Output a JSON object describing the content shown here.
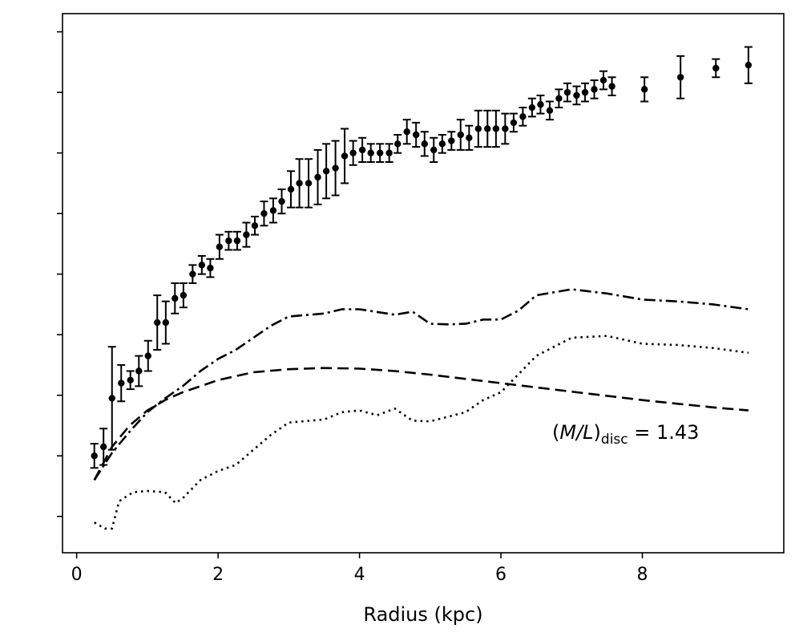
{
  "chart_data": {
    "type": "scatter",
    "xlabel": "Radius (kpc)",
    "ylabel": "",
    "title": "",
    "xlim": [
      -0.2,
      10.0
    ],
    "ylim": [
      -0.6,
      8.3
    ],
    "xticks": [
      0,
      2,
      4,
      6,
      8
    ],
    "yticks": [
      0,
      1,
      2,
      3,
      4,
      5,
      6,
      7,
      8
    ],
    "ytick_labels_shown": false,
    "grid": false,
    "legend": "none",
    "annotation": {
      "prefix": "(",
      "text_italic": "M/L",
      "close": ")",
      "subscript": "disc",
      "value": " = 1.43"
    },
    "observed": {
      "marker": "point-with-errorbars",
      "color": "#000000",
      "x": [
        0.25,
        0.38,
        0.5,
        0.63,
        0.76,
        0.88,
        1.01,
        1.14,
        1.26,
        1.39,
        1.51,
        1.64,
        1.77,
        1.89,
        2.02,
        2.15,
        2.27,
        2.4,
        2.52,
        2.65,
        2.78,
        2.9,
        3.03,
        3.15,
        3.28,
        3.41,
        3.53,
        3.66,
        3.79,
        3.91,
        4.04,
        4.16,
        4.29,
        4.42,
        4.54,
        4.67,
        4.8,
        4.92,
        5.05,
        5.17,
        5.3,
        5.43,
        5.55,
        5.68,
        5.81,
        5.93,
        6.06,
        6.18,
        6.31,
        6.44,
        6.56,
        6.69,
        6.82,
        6.94,
        7.07,
        7.19,
        7.32,
        7.45,
        7.57,
        8.03,
        8.54,
        9.04,
        9.5
      ],
      "y": [
        1.0,
        1.15,
        1.95,
        2.2,
        2.25,
        2.4,
        2.65,
        3.2,
        3.2,
        3.6,
        3.65,
        4.0,
        4.15,
        4.1,
        4.45,
        4.55,
        4.55,
        4.65,
        4.8,
        5.0,
        5.05,
        5.2,
        5.4,
        5.5,
        5.5,
        5.6,
        5.7,
        5.75,
        5.95,
        6.0,
        6.05,
        6.0,
        6.0,
        6.0,
        6.15,
        6.35,
        6.3,
        6.15,
        6.05,
        6.15,
        6.2,
        6.3,
        6.25,
        6.4,
        6.4,
        6.4,
        6.4,
        6.5,
        6.6,
        6.75,
        6.8,
        6.7,
        6.9,
        7.0,
        6.95,
        7.0,
        7.05,
        7.2,
        7.1,
        7.05,
        7.25,
        7.4,
        7.45
      ],
      "yerr": [
        0.2,
        0.3,
        0.85,
        0.3,
        0.15,
        0.25,
        0.25,
        0.45,
        0.35,
        0.25,
        0.2,
        0.15,
        0.15,
        0.15,
        0.2,
        0.15,
        0.15,
        0.2,
        0.15,
        0.2,
        0.2,
        0.2,
        0.3,
        0.4,
        0.4,
        0.45,
        0.45,
        0.45,
        0.45,
        0.2,
        0.2,
        0.15,
        0.15,
        0.15,
        0.15,
        0.2,
        0.2,
        0.2,
        0.2,
        0.15,
        0.15,
        0.25,
        0.2,
        0.3,
        0.3,
        0.3,
        0.25,
        0.15,
        0.15,
        0.15,
        0.15,
        0.15,
        0.15,
        0.15,
        0.15,
        0.15,
        0.15,
        0.15,
        0.15,
        0.2,
        0.35,
        0.15,
        0.3
      ]
    },
    "series": [
      {
        "style": "dashed",
        "color": "#000000",
        "x": [
          0.25,
          0.5,
          0.75,
          1.0,
          1.25,
          1.5,
          1.75,
          2.0,
          2.5,
          3.0,
          3.5,
          4.0,
          4.5,
          5.0,
          5.5,
          6.0,
          6.5,
          7.0,
          7.5,
          8.0,
          8.5,
          9.0,
          9.5
        ],
        "y": [
          0.6,
          1.15,
          1.5,
          1.75,
          1.92,
          2.05,
          2.15,
          2.25,
          2.38,
          2.43,
          2.45,
          2.44,
          2.4,
          2.34,
          2.27,
          2.2,
          2.13,
          2.06,
          1.99,
          1.92,
          1.86,
          1.8,
          1.75
        ]
      },
      {
        "style": "dash-dot",
        "color": "#000000",
        "x": [
          0.25,
          0.5,
          0.75,
          1.0,
          1.25,
          1.5,
          1.75,
          2.0,
          2.25,
          2.5,
          2.75,
          3.0,
          3.5,
          3.75,
          4.0,
          4.5,
          4.75,
          5.0,
          5.25,
          5.5,
          5.75,
          6.0,
          6.25,
          6.5,
          7.0,
          7.5,
          8.0,
          8.5,
          9.0,
          9.5
        ],
        "y": [
          0.6,
          1.05,
          1.4,
          1.72,
          1.95,
          2.15,
          2.4,
          2.6,
          2.75,
          2.95,
          3.15,
          3.3,
          3.35,
          3.42,
          3.42,
          3.33,
          3.38,
          3.18,
          3.17,
          3.18,
          3.25,
          3.25,
          3.4,
          3.65,
          3.75,
          3.68,
          3.58,
          3.55,
          3.5,
          3.42
        ]
      },
      {
        "style": "dotted",
        "color": "#000000",
        "x": [
          0.25,
          0.4,
          0.5,
          0.6,
          0.8,
          1.0,
          1.25,
          1.4,
          1.5,
          1.75,
          2.0,
          2.25,
          2.5,
          2.75,
          3.0,
          3.5,
          3.75,
          4.0,
          4.25,
          4.5,
          4.75,
          5.0,
          5.5,
          5.75,
          6.0,
          6.25,
          6.5,
          7.0,
          7.5,
          8.0,
          8.5,
          9.0,
          9.5
        ],
        "y": [
          -0.1,
          -0.2,
          -0.2,
          0.25,
          0.4,
          0.42,
          0.4,
          0.22,
          0.3,
          0.6,
          0.75,
          0.85,
          1.1,
          1.35,
          1.55,
          1.6,
          1.72,
          1.75,
          1.67,
          1.78,
          1.58,
          1.57,
          1.72,
          1.92,
          2.05,
          2.35,
          2.65,
          2.95,
          2.98,
          2.85,
          2.83,
          2.78,
          2.7
        ]
      }
    ]
  }
}
